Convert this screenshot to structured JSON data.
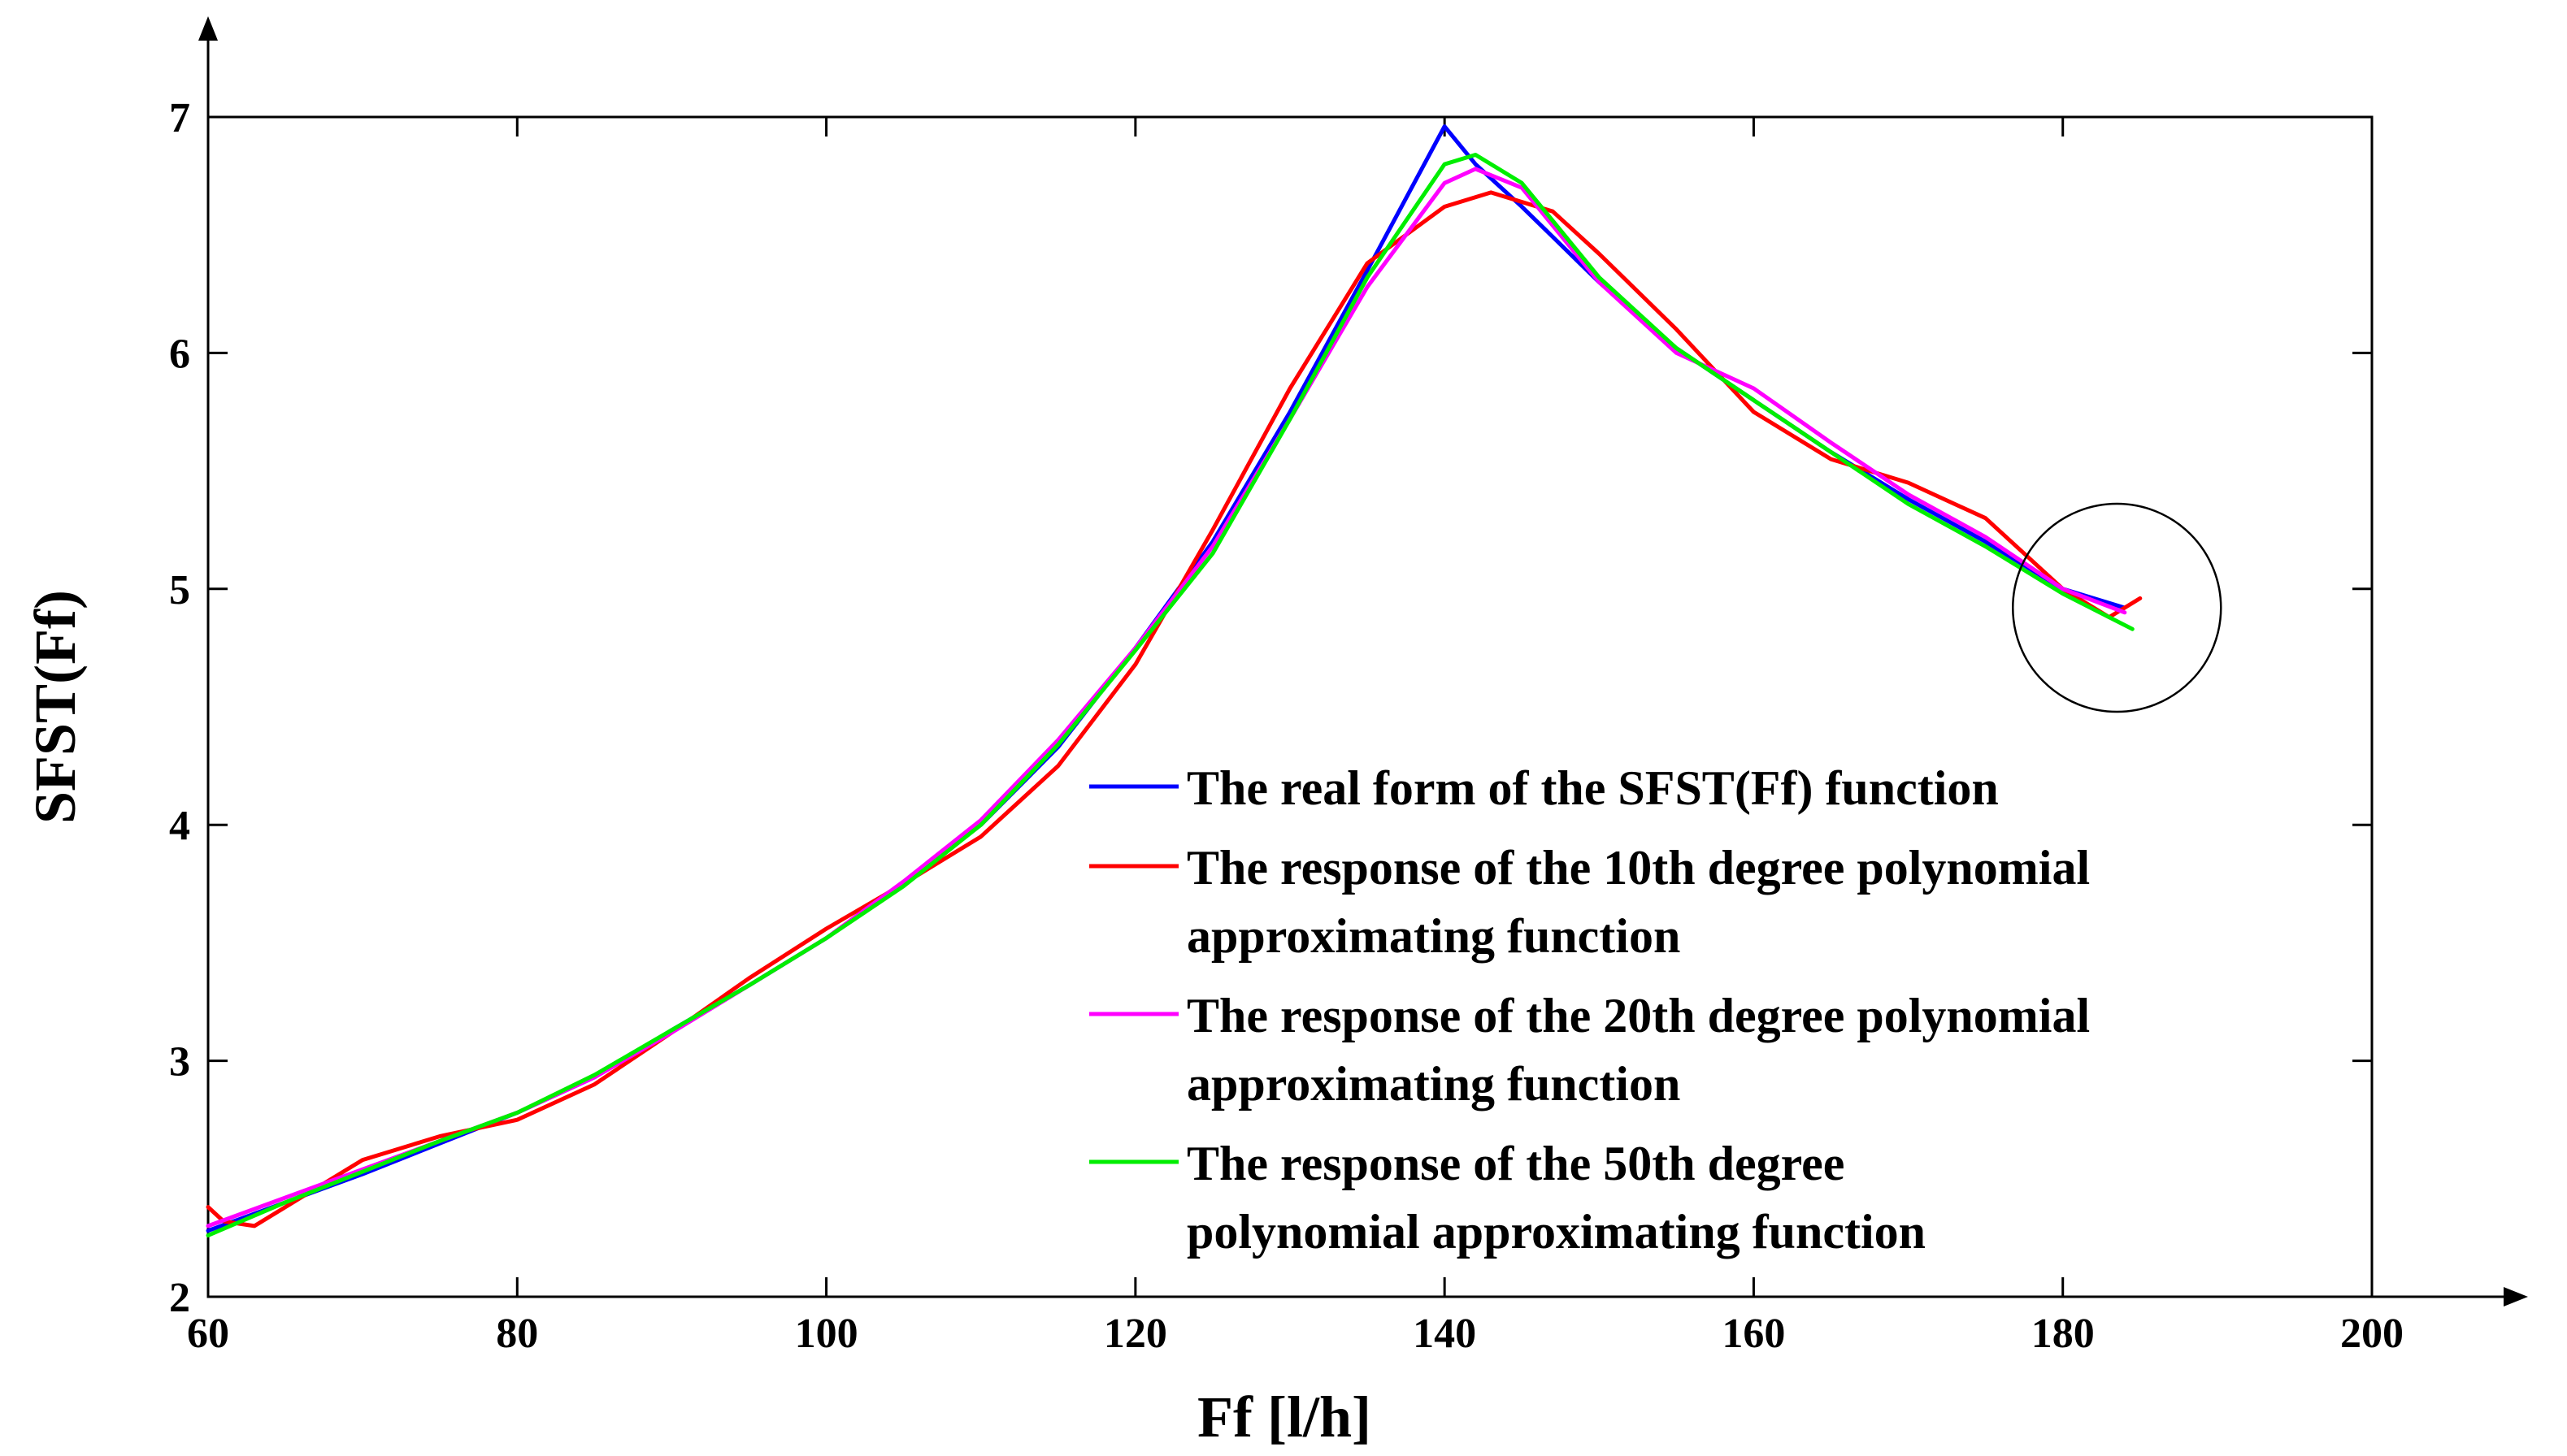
{
  "chart_data": {
    "type": "line",
    "title": "",
    "xlabel": "Ff [l/h]",
    "ylabel": "SFST(Ff)",
    "xlim": [
      60,
      200
    ],
    "ylim": [
      2,
      7
    ],
    "x_ticks": [
      "60",
      "80",
      "100",
      "120",
      "140",
      "160",
      "180",
      "200"
    ],
    "y_ticks": [
      "2",
      "3",
      "4",
      "5",
      "6",
      "7"
    ],
    "grid": false,
    "legend_position": "lower-right",
    "series": [
      {
        "name": "The real form of the SFST(Ff) function",
        "color": "#0000ff",
        "x": [
          60,
          65,
          70,
          75,
          80,
          85,
          90,
          95,
          100,
          105,
          110,
          115,
          120,
          125,
          130,
          135,
          140,
          142,
          145,
          150,
          155,
          160,
          165,
          170,
          175,
          180,
          184
        ],
        "y": [
          2.28,
          2.4,
          2.52,
          2.65,
          2.78,
          2.93,
          3.13,
          3.32,
          3.52,
          3.75,
          4.0,
          4.33,
          4.75,
          5.2,
          5.75,
          6.35,
          6.96,
          6.8,
          6.62,
          6.3,
          6.02,
          5.8,
          5.58,
          5.38,
          5.2,
          5.0,
          4.92
        ]
      },
      {
        "name": "The response of the 10th degree polynomial approximating function",
        "color": "#ff0000",
        "x": [
          60,
          61,
          63,
          65,
          70,
          75,
          80,
          85,
          90,
          95,
          100,
          105,
          110,
          115,
          120,
          125,
          130,
          135,
          140,
          143,
          147,
          150,
          155,
          160,
          165,
          170,
          175,
          180,
          183,
          185
        ],
        "y": [
          2.38,
          2.32,
          2.3,
          2.38,
          2.58,
          2.68,
          2.75,
          2.9,
          3.12,
          3.35,
          3.56,
          3.75,
          3.95,
          4.25,
          4.68,
          5.25,
          5.85,
          6.38,
          6.62,
          6.68,
          6.6,
          6.42,
          6.1,
          5.75,
          5.55,
          5.45,
          5.3,
          5.0,
          4.88,
          4.96
        ]
      },
      {
        "name": "The response of the 20th degree polynomial approximating function",
        "color": "#ff00ff",
        "x": [
          60,
          65,
          70,
          75,
          80,
          85,
          90,
          95,
          100,
          105,
          110,
          115,
          120,
          125,
          130,
          135,
          140,
          142,
          145,
          150,
          155,
          160,
          165,
          170,
          175,
          180,
          184
        ],
        "y": [
          2.3,
          2.42,
          2.54,
          2.66,
          2.78,
          2.93,
          3.12,
          3.32,
          3.52,
          3.76,
          4.02,
          4.36,
          4.75,
          5.18,
          5.72,
          6.28,
          6.72,
          6.78,
          6.7,
          6.3,
          6.0,
          5.85,
          5.62,
          5.4,
          5.22,
          5.0,
          4.9
        ]
      },
      {
        "name": "The response of the 50th degree polynomial approximating function",
        "color": "#00ee00",
        "x": [
          60,
          65,
          70,
          75,
          80,
          85,
          90,
          95,
          100,
          105,
          110,
          115,
          120,
          125,
          130,
          135,
          140,
          142,
          145,
          150,
          155,
          160,
          165,
          170,
          175,
          180,
          184.5
        ],
        "y": [
          2.26,
          2.4,
          2.53,
          2.66,
          2.78,
          2.94,
          3.13,
          3.32,
          3.52,
          3.74,
          4.0,
          4.34,
          4.74,
          5.15,
          5.72,
          6.32,
          6.8,
          6.84,
          6.72,
          6.32,
          6.02,
          5.8,
          5.58,
          5.36,
          5.18,
          4.98,
          4.83
        ]
      }
    ],
    "annotations": [
      {
        "type": "circle",
        "label": "",
        "center_x": 183.5,
        "center_y": 4.92
      }
    ],
    "legend_lines": [
      [
        "The real form of the SFST(Ff) function"
      ],
      [
        "The response of the 10th degree polynomial",
        "approximating function"
      ],
      [
        "The response of the 20th degree polynomial",
        "approximating function"
      ],
      [
        "The response of the 50th degree",
        "polynomial approximating function"
      ]
    ]
  }
}
